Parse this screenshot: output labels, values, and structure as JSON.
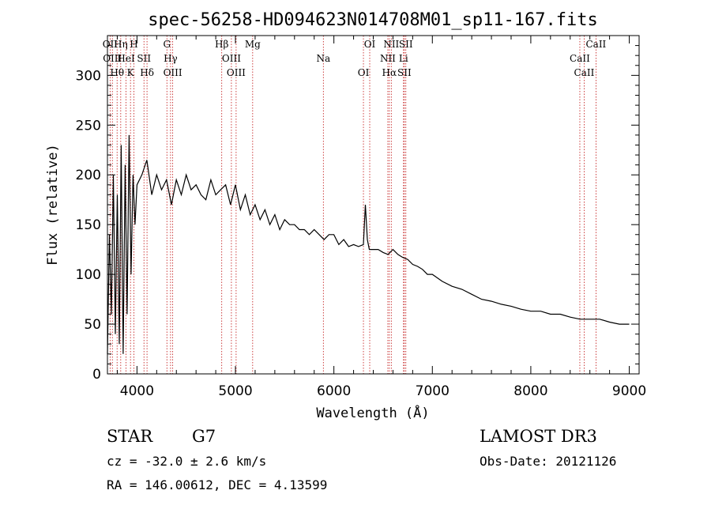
{
  "chart_data": {
    "type": "line",
    "title": "spec-56258-HD094623N014708M01_sp11-167.fits",
    "xlabel": "Wavelength (Å)",
    "ylabel": "Flux (relative)",
    "xlim": [
      3700,
      9100
    ],
    "ylim": [
      0,
      340
    ],
    "xticks": [
      4000,
      5000,
      6000,
      7000,
      8000,
      9000
    ],
    "yticks": [
      0,
      50,
      100,
      150,
      200,
      250,
      300
    ],
    "xtick_labels": [
      "4000",
      "5000",
      "6000",
      "7000",
      "8000",
      "9000"
    ],
    "ytick_labels": [
      "0",
      "50",
      "100",
      "150",
      "200",
      "250",
      "300"
    ],
    "series": [
      {
        "name": "flux",
        "x": [
          3700,
          3720,
          3740,
          3760,
          3780,
          3800,
          3820,
          3840,
          3860,
          3880,
          3900,
          3920,
          3940,
          3960,
          3980,
          4000,
          4050,
          4100,
          4150,
          4200,
          4250,
          4300,
          4350,
          4400,
          4450,
          4500,
          4550,
          4600,
          4650,
          4700,
          4750,
          4800,
          4850,
          4900,
          4950,
          5000,
          5050,
          5100,
          5150,
          5200,
          5250,
          5300,
          5350,
          5400,
          5450,
          5500,
          5550,
          5600,
          5650,
          5700,
          5750,
          5800,
          5850,
          5900,
          5950,
          6000,
          6050,
          6100,
          6150,
          6200,
          6250,
          6300,
          6320,
          6340,
          6360,
          6400,
          6450,
          6500,
          6550,
          6600,
          6650,
          6700,
          6750,
          6800,
          6850,
          6900,
          6950,
          7000,
          7100,
          7200,
          7300,
          7400,
          7500,
          7600,
          7700,
          7800,
          7900,
          8000,
          8100,
          8200,
          8300,
          8400,
          8500,
          8600,
          8700,
          8800,
          8900,
          8950,
          9000
        ],
        "y": [
          20,
          140,
          60,
          200,
          40,
          180,
          30,
          230,
          20,
          210,
          60,
          240,
          100,
          200,
          150,
          190,
          200,
          215,
          180,
          200,
          185,
          195,
          170,
          195,
          180,
          200,
          185,
          190,
          180,
          175,
          195,
          180,
          185,
          190,
          170,
          190,
          165,
          180,
          160,
          170,
          155,
          165,
          150,
          160,
          145,
          155,
          150,
          150,
          145,
          145,
          140,
          145,
          140,
          135,
          140,
          140,
          130,
          135,
          128,
          130,
          128,
          130,
          170,
          135,
          125,
          125,
          125,
          122,
          120,
          125,
          120,
          117,
          115,
          110,
          108,
          105,
          100,
          100,
          93,
          88,
          85,
          80,
          75,
          73,
          70,
          68,
          65,
          63,
          63,
          60,
          60,
          57,
          55,
          55,
          55,
          52,
          50,
          50,
          50
        ]
      }
    ],
    "line_markers": [
      {
        "wavelength": 3727,
        "label": "OII"
      },
      {
        "wavelength": 3750,
        "label": "OIII"
      },
      {
        "wavelength": 3798,
        "label": "Hθ"
      },
      {
        "wavelength": 3835,
        "label": "Hη"
      },
      {
        "wavelength": 3889,
        "label": "HeI"
      },
      {
        "wavelength": 3934,
        "label": "K"
      },
      {
        "wavelength": 3969,
        "label": "H"
      },
      {
        "wavelength": 4071,
        "label": "SII"
      },
      {
        "wavelength": 4102,
        "label": "Hδ"
      },
      {
        "wavelength": 4304,
        "label": "G"
      },
      {
        "wavelength": 4341,
        "label": "Hγ"
      },
      {
        "wavelength": 4363,
        "label": "OIII"
      },
      {
        "wavelength": 4861,
        "label": "Hβ"
      },
      {
        "wavelength": 4959,
        "label": "OIII"
      },
      {
        "wavelength": 5007,
        "label": "OIII"
      },
      {
        "wavelength": 5175,
        "label": "Mg"
      },
      {
        "wavelength": 5893,
        "label": "Na"
      },
      {
        "wavelength": 6300,
        "label": "OI"
      },
      {
        "wavelength": 6364,
        "label": "OI"
      },
      {
        "wavelength": 6548,
        "label": "NII"
      },
      {
        "wavelength": 6563,
        "label": "Hα"
      },
      {
        "wavelength": 6583,
        "label": "NII"
      },
      {
        "wavelength": 6707,
        "label": "Li"
      },
      {
        "wavelength": 6716,
        "label": "SII"
      },
      {
        "wavelength": 6731,
        "label": "SII"
      },
      {
        "wavelength": 8498,
        "label": "CaII"
      },
      {
        "wavelength": 8542,
        "label": "CaII"
      },
      {
        "wavelength": 8662,
        "label": "CaII"
      }
    ]
  },
  "info": {
    "class_label": "STAR",
    "subclass": "G7",
    "survey": "LAMOST DR3",
    "cz": "cz = -32.0 ± 2.6 km/s",
    "obs_date": "Obs-Date: 20121126",
    "coords": "RA = 146.00612, DEC =   4.13599"
  }
}
